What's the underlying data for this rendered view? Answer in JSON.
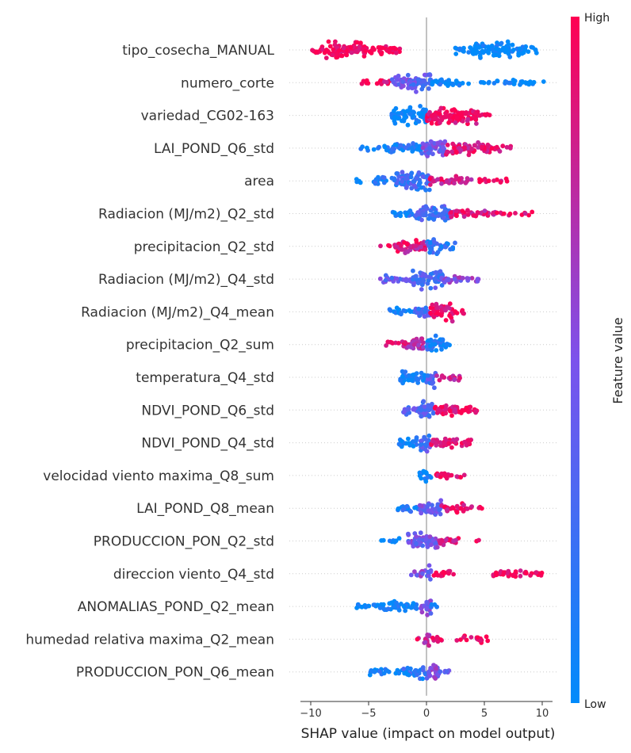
{
  "chart_data": {
    "type": "scatter",
    "subtype": "shap-beeswarm",
    "xlabel": "SHAP value (impact on model output)",
    "xlim": [
      -11,
      11
    ],
    "xticks": [
      -10,
      -5,
      0,
      5,
      10
    ],
    "grid": "dotted row guides",
    "colorbar": {
      "title": "Feature value",
      "high_label": "High",
      "low_label": "Low",
      "low_color": "#008bfb",
      "mid_color": "#7c52ec",
      "high_color": "#ff0052"
    },
    "features": [
      {
        "name": "tipo_cosecha_MANUAL",
        "segments": [
          {
            "from": -10.0,
            "to": -8.8,
            "level": 1.0,
            "density": 0.35,
            "spread": 0.5
          },
          {
            "from": -8.8,
            "to": -5.3,
            "level": 1.0,
            "density": 1.0,
            "spread": 1.0
          },
          {
            "from": -5.3,
            "to": -2.3,
            "level": 1.0,
            "density": 0.45,
            "spread": 0.6
          },
          {
            "from": 2.5,
            "to": 4.2,
            "level": 0.0,
            "density": 0.45,
            "spread": 0.55
          },
          {
            "from": 4.2,
            "to": 7.3,
            "level": 0.0,
            "density": 1.0,
            "spread": 1.0
          },
          {
            "from": 7.3,
            "to": 9.6,
            "level": 0.0,
            "density": 0.4,
            "spread": 0.55
          }
        ]
      },
      {
        "name": "numero_corte",
        "segments": [
          {
            "from": -5.6,
            "to": -3.0,
            "level": 0.95,
            "density": 0.25,
            "spread": 0.4
          },
          {
            "from": -3.0,
            "to": -0.8,
            "level": 0.45,
            "density": 0.7,
            "spread": 0.85
          },
          {
            "from": -1.6,
            "to": 0.4,
            "level": 0.35,
            "density": 1.0,
            "spread": 1.0
          },
          {
            "from": 0.4,
            "to": 3.0,
            "level": 0.05,
            "density": 0.45,
            "spread": 0.45
          },
          {
            "from": 3.0,
            "to": 10.2,
            "level": 0.0,
            "density": 0.2,
            "spread": 0.3
          }
        ]
      },
      {
        "name": "variedad_CG02-163",
        "segments": [
          {
            "from": -3.0,
            "to": 0.0,
            "level": 0.0,
            "density": 1.0,
            "spread": 1.0
          },
          {
            "from": 0.0,
            "to": 4.5,
            "level": 0.95,
            "density": 1.0,
            "spread": 1.0
          },
          {
            "from": 4.5,
            "to": 5.8,
            "level": 1.0,
            "density": 0.2,
            "spread": 0.3
          }
        ]
      },
      {
        "name": "LAI_POND_Q6_std",
        "segments": [
          {
            "from": -5.9,
            "to": -3.8,
            "level": 0.0,
            "density": 0.15,
            "spread": 0.3
          },
          {
            "from": -3.8,
            "to": -0.4,
            "level": 0.1,
            "density": 0.55,
            "spread": 0.6
          },
          {
            "from": -0.4,
            "to": 1.6,
            "level": 0.45,
            "density": 1.0,
            "spread": 1.0
          },
          {
            "from": 1.6,
            "to": 5.5,
            "level": 0.85,
            "density": 0.7,
            "spread": 0.7
          },
          {
            "from": 5.5,
            "to": 7.4,
            "level": 0.95,
            "density": 0.25,
            "spread": 0.35
          }
        ]
      },
      {
        "name": "area",
        "segments": [
          {
            "from": -6.5,
            "to": -4.5,
            "level": 0.0,
            "density": 0.1,
            "spread": 0.3
          },
          {
            "from": -4.5,
            "to": -2.8,
            "level": 0.1,
            "density": 0.4,
            "spread": 0.55
          },
          {
            "from": -2.8,
            "to": 0.3,
            "level": 0.25,
            "density": 1.0,
            "spread": 1.0
          },
          {
            "from": 0.3,
            "to": 4.0,
            "level": 0.85,
            "density": 0.45,
            "spread": 0.5
          },
          {
            "from": 4.0,
            "to": 7.3,
            "level": 0.95,
            "density": 0.15,
            "spread": 0.3
          }
        ]
      },
      {
        "name": "Radiacion (MJ/m2)_Q2_std",
        "segments": [
          {
            "from": -3.2,
            "to": -1.0,
            "level": 0.1,
            "density": 0.35,
            "spread": 0.5
          },
          {
            "from": -1.0,
            "to": 2.0,
            "level": 0.3,
            "density": 1.0,
            "spread": 1.0
          },
          {
            "from": 2.0,
            "to": 6.0,
            "level": 0.85,
            "density": 0.5,
            "spread": 0.5
          },
          {
            "from": 6.0,
            "to": 9.3,
            "level": 0.95,
            "density": 0.15,
            "spread": 0.3
          }
        ]
      },
      {
        "name": "precipitacion_Q2_std",
        "segments": [
          {
            "from": -4.1,
            "to": -2.5,
            "level": 0.95,
            "density": 0.2,
            "spread": 0.35
          },
          {
            "from": -2.5,
            "to": 0.0,
            "level": 0.85,
            "density": 0.85,
            "spread": 0.8
          },
          {
            "from": 0.0,
            "to": 1.2,
            "level": 0.2,
            "density": 1.0,
            "spread": 1.0
          },
          {
            "from": 1.2,
            "to": 3.0,
            "level": 0.2,
            "density": 0.35,
            "spread": 0.45
          }
        ]
      },
      {
        "name": "Radiacion (MJ/m2)_Q4_std",
        "segments": [
          {
            "from": -4.2,
            "to": -1.2,
            "level": 0.4,
            "density": 0.35,
            "spread": 0.45
          },
          {
            "from": -1.2,
            "to": 1.5,
            "level": 0.3,
            "density": 1.0,
            "spread": 1.0
          },
          {
            "from": 1.5,
            "to": 4.5,
            "level": 0.55,
            "density": 0.35,
            "spread": 0.4
          }
        ]
      },
      {
        "name": "Radiacion (MJ/m2)_Q4_mean",
        "segments": [
          {
            "from": -3.2,
            "to": -1.0,
            "level": 0.0,
            "density": 0.35,
            "spread": 0.5
          },
          {
            "from": -1.0,
            "to": 0.3,
            "level": 0.3,
            "density": 0.8,
            "spread": 0.8
          },
          {
            "from": 0.3,
            "to": 2.4,
            "level": 0.95,
            "density": 1.0,
            "spread": 1.0
          },
          {
            "from": 2.4,
            "to": 3.5,
            "level": 1.0,
            "density": 0.25,
            "spread": 0.35
          }
        ]
      },
      {
        "name": "precipitacion_Q2_sum",
        "segments": [
          {
            "from": -3.6,
            "to": -1.8,
            "level": 0.95,
            "density": 0.3,
            "spread": 0.45
          },
          {
            "from": -1.8,
            "to": 0.0,
            "level": 0.75,
            "density": 0.75,
            "spread": 0.75
          },
          {
            "from": 0.0,
            "to": 1.5,
            "level": 0.1,
            "density": 1.0,
            "spread": 1.0
          },
          {
            "from": 1.5,
            "to": 2.4,
            "level": 0.05,
            "density": 0.3,
            "spread": 0.4
          }
        ]
      },
      {
        "name": "temperatura_Q4_std",
        "segments": [
          {
            "from": -2.4,
            "to": 0.0,
            "level": 0.05,
            "density": 0.75,
            "spread": 0.75
          },
          {
            "from": 0.0,
            "to": 0.8,
            "level": 0.3,
            "density": 1.0,
            "spread": 1.0
          },
          {
            "from": 0.8,
            "to": 3.0,
            "level": 0.85,
            "density": 0.3,
            "spread": 0.4
          }
        ]
      },
      {
        "name": "NDVI_POND_Q6_std",
        "segments": [
          {
            "from": -2.1,
            "to": 0.0,
            "level": 0.35,
            "density": 0.55,
            "spread": 0.6
          },
          {
            "from": -0.5,
            "to": 0.6,
            "level": 0.3,
            "density": 1.0,
            "spread": 1.0
          },
          {
            "from": 0.6,
            "to": 3.8,
            "level": 0.9,
            "density": 0.6,
            "spread": 0.6
          },
          {
            "from": 3.8,
            "to": 5.0,
            "level": 0.95,
            "density": 0.2,
            "spread": 0.3
          }
        ]
      },
      {
        "name": "NDVI_POND_Q4_std",
        "segments": [
          {
            "from": -2.4,
            "to": -0.4,
            "level": 0.05,
            "density": 0.55,
            "spread": 0.6
          },
          {
            "from": -0.5,
            "to": 0.3,
            "level": 0.3,
            "density": 1.0,
            "spread": 1.0
          },
          {
            "from": 0.3,
            "to": 4.0,
            "level": 0.95,
            "density": 0.5,
            "spread": 0.55
          }
        ]
      },
      {
        "name": "velocidad viento maxima_Q8_sum",
        "segments": [
          {
            "from": -0.6,
            "to": 0.4,
            "level": 0.05,
            "density": 0.7,
            "spread": 0.75
          },
          {
            "from": 0.4,
            "to": 3.3,
            "level": 0.95,
            "density": 0.35,
            "spread": 0.4
          }
        ]
      },
      {
        "name": "LAI_POND_Q8_mean",
        "segments": [
          {
            "from": -2.5,
            "to": -0.6,
            "level": 0.1,
            "density": 0.45,
            "spread": 0.6
          },
          {
            "from": -0.6,
            "to": 1.3,
            "level": 0.45,
            "density": 1.0,
            "spread": 1.0
          },
          {
            "from": 1.3,
            "to": 4.0,
            "level": 0.95,
            "density": 0.45,
            "spread": 0.5
          },
          {
            "from": 4.0,
            "to": 4.9,
            "level": 1.0,
            "density": 0.15,
            "spread": 0.25
          }
        ]
      },
      {
        "name": "PRODUCCION_PON_Q2_std",
        "segments": [
          {
            "from": -3.9,
            "to": -1.6,
            "level": 0.0,
            "density": 0.15,
            "spread": 0.3
          },
          {
            "from": -1.6,
            "to": 1.0,
            "level": 0.45,
            "density": 1.0,
            "spread": 1.0
          },
          {
            "from": 1.0,
            "to": 2.8,
            "level": 0.9,
            "density": 0.4,
            "spread": 0.45
          },
          {
            "from": 4.3,
            "to": 4.6,
            "level": 0.95,
            "density": 0.05,
            "spread": 0.2
          }
        ]
      },
      {
        "name": "direccion viento_Q4_std",
        "segments": [
          {
            "from": -1.5,
            "to": 0.0,
            "level": 0.5,
            "density": 0.3,
            "spread": 0.45
          },
          {
            "from": 0.0,
            "to": 0.4,
            "level": 0.4,
            "density": 1.0,
            "spread": 1.0
          },
          {
            "from": 0.4,
            "to": 2.4,
            "level": 0.95,
            "density": 0.35,
            "spread": 0.4
          },
          {
            "from": 5.6,
            "to": 10.0,
            "level": 0.97,
            "density": 0.35,
            "spread": 0.5
          }
        ]
      },
      {
        "name": "ANOMALIAS_POND_Q2_mean",
        "segments": [
          {
            "from": -6.1,
            "to": -4.0,
            "level": 0.0,
            "density": 0.3,
            "spread": 0.3
          },
          {
            "from": -4.0,
            "to": -0.5,
            "level": 0.05,
            "density": 0.55,
            "spread": 0.55
          },
          {
            "from": -0.5,
            "to": 0.4,
            "level": 0.45,
            "density": 1.0,
            "spread": 1.0
          },
          {
            "from": 0.4,
            "to": 1.4,
            "level": 0.1,
            "density": 0.15,
            "spread": 0.3
          }
        ]
      },
      {
        "name": "humedad relativa maxima_Q2_mean",
        "segments": [
          {
            "from": -1.1,
            "to": -0.2,
            "level": 0.9,
            "density": 0.1,
            "spread": 0.3
          },
          {
            "from": -0.2,
            "to": 0.3,
            "level": 0.7,
            "density": 1.0,
            "spread": 1.0
          },
          {
            "from": 0.3,
            "to": 1.4,
            "level": 0.95,
            "density": 0.3,
            "spread": 0.4
          },
          {
            "from": 2.5,
            "to": 5.6,
            "level": 0.97,
            "density": 0.25,
            "spread": 0.4
          }
        ]
      },
      {
        "name": "PRODUCCION_PON_Q6_mean",
        "segments": [
          {
            "from": -4.9,
            "to": -2.0,
            "level": 0.05,
            "density": 0.35,
            "spread": 0.4
          },
          {
            "from": -2.0,
            "to": 0.0,
            "level": 0.15,
            "density": 0.7,
            "spread": 0.7
          },
          {
            "from": 0.0,
            "to": 1.0,
            "level": 0.55,
            "density": 1.0,
            "spread": 1.0
          },
          {
            "from": 1.0,
            "to": 2.0,
            "level": 0.4,
            "density": 0.35,
            "spread": 0.4
          }
        ]
      }
    ]
  }
}
